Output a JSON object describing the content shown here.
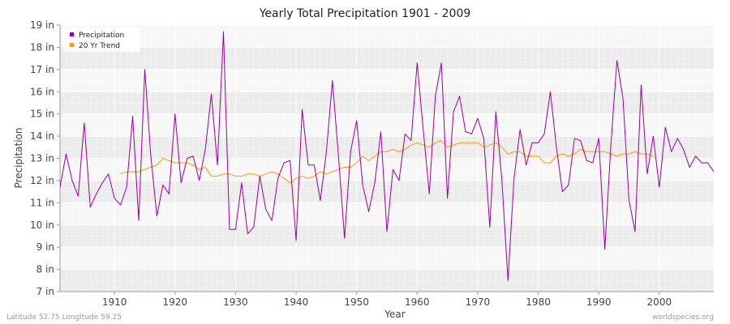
{
  "chart_data": {
    "type": "line",
    "title": "Yearly Total Precipitation 1901 - 2009",
    "xlabel": "Year",
    "ylabel": "Precipitation",
    "xlim": [
      1901,
      2009
    ],
    "ylim": [
      7,
      19
    ],
    "x_ticks": [
      1910,
      1920,
      1930,
      1940,
      1950,
      1960,
      1970,
      1980,
      1990,
      2000
    ],
    "y_ticks": [
      "7 in",
      "8 in",
      "9 in",
      "10 in",
      "11 in",
      "12 in",
      "13 in",
      "14 in",
      "15 in",
      "16 in",
      "17 in",
      "18 in",
      "19 in"
    ],
    "legend": {
      "position": "top-left"
    },
    "series": [
      {
        "name": "Precipitation",
        "color": "#990099",
        "x": [
          1901,
          1902,
          1903,
          1904,
          1905,
          1906,
          1907,
          1908,
          1909,
          1910,
          1911,
          1912,
          1913,
          1914,
          1915,
          1916,
          1917,
          1918,
          1919,
          1920,
          1921,
          1922,
          1923,
          1924,
          1925,
          1926,
          1927,
          1928,
          1929,
          1930,
          1931,
          1932,
          1933,
          1934,
          1935,
          1936,
          1937,
          1938,
          1939,
          1940,
          1941,
          1942,
          1943,
          1944,
          1945,
          1946,
          1947,
          1948,
          1949,
          1950,
          1951,
          1952,
          1953,
          1954,
          1955,
          1956,
          1957,
          1958,
          1959,
          1960,
          1961,
          1962,
          1963,
          1964,
          1965,
          1966,
          1967,
          1968,
          1969,
          1970,
          1971,
          1972,
          1973,
          1974,
          1975,
          1976,
          1977,
          1978,
          1979,
          1980,
          1981,
          1982,
          1983,
          1984,
          1985,
          1986,
          1987,
          1988,
          1989,
          1990,
          1991,
          1992,
          1993,
          1994,
          1995,
          1996,
          1997,
          1998,
          1999,
          2000,
          2001,
          2002,
          2003,
          2004,
          2005,
          2006,
          2007,
          2008,
          2009
        ],
        "values": [
          11.7,
          13.2,
          12.0,
          11.3,
          14.6,
          10.8,
          11.4,
          11.9,
          12.3,
          11.2,
          10.9,
          11.7,
          14.9,
          10.2,
          17.0,
          13.1,
          10.4,
          11.8,
          11.4,
          15.0,
          11.9,
          13.0,
          13.1,
          12.0,
          13.4,
          15.9,
          12.7,
          18.7,
          9.8,
          9.8,
          11.9,
          9.6,
          9.9,
          12.2,
          10.7,
          10.2,
          12.1,
          12.8,
          12.9,
          9.3,
          15.2,
          12.7,
          12.7,
          11.1,
          13.3,
          16.5,
          13.1,
          9.4,
          13.3,
          14.7,
          11.8,
          10.6,
          11.9,
          14.2,
          9.7,
          12.5,
          12.0,
          14.1,
          13.8,
          17.3,
          14.3,
          11.4,
          15.8,
          17.3,
          11.2,
          15.1,
          15.8,
          14.2,
          14.1,
          14.8,
          13.9,
          9.9,
          15.1,
          12.0,
          7.5,
          12.1,
          14.3,
          12.7,
          13.7,
          13.7,
          14.1,
          16.0,
          13.5,
          11.5,
          11.8,
          13.9,
          13.8,
          12.9,
          12.8,
          13.9,
          8.9,
          13.6,
          17.4,
          15.7,
          11.1,
          9.7,
          16.3,
          12.3,
          14.0,
          11.7,
          14.4,
          13.3,
          13.9,
          13.4,
          12.6,
          13.1,
          12.8,
          12.8,
          12.4
        ]
      },
      {
        "name": "20 Yr Trend",
        "color": "#ff9900",
        "x": [
          1911,
          1912,
          1913,
          1914,
          1915,
          1916,
          1917,
          1918,
          1919,
          1920,
          1921,
          1922,
          1923,
          1924,
          1925,
          1926,
          1927,
          1928,
          1929,
          1930,
          1931,
          1932,
          1933,
          1934,
          1935,
          1936,
          1937,
          1938,
          1939,
          1940,
          1941,
          1942,
          1943,
          1944,
          1945,
          1946,
          1947,
          1948,
          1949,
          1950,
          1951,
          1952,
          1953,
          1954,
          1955,
          1956,
          1957,
          1958,
          1959,
          1960,
          1961,
          1962,
          1963,
          1964,
          1965,
          1966,
          1967,
          1968,
          1969,
          1970,
          1971,
          1972,
          1973,
          1974,
          1975,
          1976,
          1977,
          1978,
          1979,
          1980,
          1981,
          1982,
          1983,
          1984,
          1985,
          1986,
          1987,
          1988,
          1989,
          1990,
          1991,
          1992,
          1993,
          1994,
          1995,
          1996,
          1997,
          1998,
          1999
        ],
        "values": [
          12.3,
          12.4,
          12.4,
          12.4,
          12.5,
          12.6,
          12.7,
          13.0,
          12.9,
          12.8,
          12.8,
          12.8,
          12.7,
          12.5,
          12.6,
          12.2,
          12.2,
          12.3,
          12.3,
          12.2,
          12.2,
          12.3,
          12.3,
          12.2,
          12.3,
          12.4,
          12.3,
          12.1,
          11.9,
          12.1,
          12.2,
          12.1,
          12.2,
          12.4,
          12.3,
          12.4,
          12.5,
          12.6,
          12.6,
          12.8,
          13.1,
          12.9,
          13.1,
          13.3,
          13.3,
          13.4,
          13.3,
          13.4,
          13.6,
          13.7,
          13.6,
          13.5,
          13.7,
          13.8,
          13.5,
          13.6,
          13.7,
          13.7,
          13.7,
          13.7,
          13.5,
          13.6,
          13.7,
          13.5,
          13.2,
          13.3,
          13.3,
          13.1,
          13.1,
          13.1,
          12.8,
          12.8,
          13.1,
          13.2,
          13.1,
          13.2,
          13.4,
          13.3,
          13.3,
          13.3,
          13.3,
          13.2,
          13.1,
          13.2,
          13.2,
          13.3,
          13.2,
          13.2,
          13.1
        ]
      }
    ]
  },
  "footer": {
    "location": "Latitude 52.75 Longitude 59.25",
    "source": "worldspecies.org"
  }
}
